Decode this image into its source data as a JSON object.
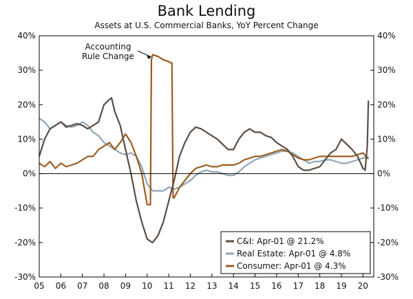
{
  "header": {
    "title": "Bank Lending",
    "subtitle": "Assets at U.S. Commercial Banks, YoY Percent Change"
  },
  "chart_data": {
    "type": "line",
    "title": "Bank Lending",
    "subtitle": "Assets at U.S. Commercial Banks, YoY Percent Change",
    "xlabel": "",
    "ylabel": "",
    "xlim": [
      2005,
      2020.5
    ],
    "ylim": [
      -30,
      40
    ],
    "x_ticks": [
      "05",
      "06",
      "07",
      "08",
      "09",
      "10",
      "11",
      "12",
      "13",
      "14",
      "15",
      "16",
      "17",
      "18",
      "19",
      "20"
    ],
    "y_ticks_left": [
      "40%",
      "30%",
      "20%",
      "10%",
      "0%",
      "-10%",
      "-20%",
      "-30%"
    ],
    "y_ticks_right": [
      "40%",
      "30%",
      "20%",
      "10%",
      "0%",
      "-10%",
      "-20%",
      "-30%"
    ],
    "grid": false,
    "zero_line": true,
    "annotation": {
      "text": [
        "Accounting",
        "Rule Change"
      ],
      "x": 2010.2,
      "y": 34
    },
    "legend": {
      "placement": "bottom-right"
    },
    "series": [
      {
        "name": "C&I: Apr-01 @ 21.2%",
        "color": "#5a4d44",
        "points": [
          [
            2005.0,
            5
          ],
          [
            2005.25,
            10
          ],
          [
            2005.5,
            13
          ],
          [
            2005.75,
            14
          ],
          [
            2006.0,
            15
          ],
          [
            2006.25,
            13.5
          ],
          [
            2006.5,
            14
          ],
          [
            2006.75,
            14.5
          ],
          [
            2007.0,
            14
          ],
          [
            2007.25,
            13
          ],
          [
            2007.5,
            14
          ],
          [
            2007.75,
            15
          ],
          [
            2008.0,
            20
          ],
          [
            2008.25,
            21.5
          ],
          [
            2008.35,
            22
          ],
          [
            2008.5,
            18
          ],
          [
            2008.75,
            14
          ],
          [
            2009.0,
            7
          ],
          [
            2009.25,
            0
          ],
          [
            2009.5,
            -8
          ],
          [
            2009.75,
            -14
          ],
          [
            2010.0,
            -19
          ],
          [
            2010.25,
            -20
          ],
          [
            2010.5,
            -18
          ],
          [
            2010.75,
            -14
          ],
          [
            2011.0,
            -8
          ],
          [
            2011.25,
            -2
          ],
          [
            2011.5,
            5
          ],
          [
            2011.75,
            9
          ],
          [
            2012.0,
            12
          ],
          [
            2012.25,
            13.5
          ],
          [
            2012.5,
            13
          ],
          [
            2012.75,
            12
          ],
          [
            2013.0,
            11
          ],
          [
            2013.25,
            10
          ],
          [
            2013.5,
            8.5
          ],
          [
            2013.75,
            7
          ],
          [
            2014.0,
            7
          ],
          [
            2014.25,
            10
          ],
          [
            2014.5,
            12
          ],
          [
            2014.75,
            13
          ],
          [
            2015.0,
            12
          ],
          [
            2015.25,
            12
          ],
          [
            2015.5,
            11
          ],
          [
            2015.75,
            10.5
          ],
          [
            2016.0,
            9
          ],
          [
            2016.25,
            8
          ],
          [
            2016.5,
            7
          ],
          [
            2016.75,
            5
          ],
          [
            2017.0,
            2
          ],
          [
            2017.25,
            1
          ],
          [
            2017.5,
            1
          ],
          [
            2017.75,
            1.5
          ],
          [
            2018.0,
            2
          ],
          [
            2018.25,
            4
          ],
          [
            2018.5,
            6
          ],
          [
            2018.75,
            7
          ],
          [
            2019.0,
            10
          ],
          [
            2019.25,
            8.5
          ],
          [
            2019.5,
            7
          ],
          [
            2019.75,
            5
          ],
          [
            2020.0,
            1.5
          ],
          [
            2020.1,
            1
          ],
          [
            2020.2,
            8
          ],
          [
            2020.25,
            21.2
          ]
        ]
      },
      {
        "name": "Real Estate: Apr-01 @ 4.8%",
        "color": "#8ca6b8",
        "points": [
          [
            2005.0,
            16
          ],
          [
            2005.25,
            15
          ],
          [
            2005.5,
            13
          ],
          [
            2005.75,
            14
          ],
          [
            2006.0,
            15
          ],
          [
            2006.25,
            14
          ],
          [
            2006.5,
            13.5
          ],
          [
            2006.75,
            14
          ],
          [
            2007.0,
            15
          ],
          [
            2007.25,
            14
          ],
          [
            2007.5,
            12
          ],
          [
            2007.75,
            11
          ],
          [
            2008.0,
            9
          ],
          [
            2008.25,
            8
          ],
          [
            2008.5,
            7
          ],
          [
            2008.75,
            6
          ],
          [
            2009.0,
            5.5
          ],
          [
            2009.25,
            6
          ],
          [
            2009.5,
            5
          ],
          [
            2009.75,
            2
          ],
          [
            2010.0,
            -3
          ],
          [
            2010.25,
            -5
          ],
          [
            2010.5,
            -5
          ],
          [
            2010.75,
            -5
          ],
          [
            2011.0,
            -4
          ],
          [
            2011.25,
            -4.5
          ],
          [
            2011.5,
            -4
          ],
          [
            2011.75,
            -3
          ],
          [
            2012.0,
            -2
          ],
          [
            2012.25,
            -0.5
          ],
          [
            2012.5,
            0.5
          ],
          [
            2012.75,
            1
          ],
          [
            2013.0,
            0.5
          ],
          [
            2013.25,
            0.5
          ],
          [
            2013.5,
            0
          ],
          [
            2013.75,
            -0.5
          ],
          [
            2014.0,
            -0.5
          ],
          [
            2014.25,
            0.5
          ],
          [
            2014.5,
            2
          ],
          [
            2014.75,
            3
          ],
          [
            2015.0,
            4
          ],
          [
            2015.25,
            4.5
          ],
          [
            2015.5,
            5
          ],
          [
            2015.75,
            5.5
          ],
          [
            2016.0,
            6
          ],
          [
            2016.25,
            6.5
          ],
          [
            2016.5,
            6.5
          ],
          [
            2016.75,
            6
          ],
          [
            2017.0,
            5
          ],
          [
            2017.25,
            4
          ],
          [
            2017.5,
            3
          ],
          [
            2017.75,
            3.5
          ],
          [
            2018.0,
            3.5
          ],
          [
            2018.25,
            4
          ],
          [
            2018.5,
            4
          ],
          [
            2018.75,
            3.5
          ],
          [
            2019.0,
            3
          ],
          [
            2019.25,
            3
          ],
          [
            2019.5,
            3.5
          ],
          [
            2019.75,
            4
          ],
          [
            2020.0,
            4.5
          ],
          [
            2020.25,
            4.8
          ]
        ]
      },
      {
        "name": "Consumer: Apr-01 @ 4.3%",
        "color": "#9b5a1d",
        "points": [
          [
            2005.0,
            3
          ],
          [
            2005.25,
            2
          ],
          [
            2005.5,
            3.5
          ],
          [
            2005.75,
            1.5
          ],
          [
            2006.0,
            3
          ],
          [
            2006.25,
            2
          ],
          [
            2006.5,
            2.5
          ],
          [
            2006.75,
            3
          ],
          [
            2007.0,
            4
          ],
          [
            2007.25,
            5
          ],
          [
            2007.5,
            5
          ],
          [
            2007.75,
            7
          ],
          [
            2008.0,
            8
          ],
          [
            2008.25,
            9
          ],
          [
            2008.5,
            7
          ],
          [
            2008.75,
            9
          ],
          [
            2009.0,
            11.5
          ],
          [
            2009.25,
            9
          ],
          [
            2009.5,
            5
          ],
          [
            2009.75,
            0
          ],
          [
            2010.0,
            -9
          ],
          [
            2010.15,
            -9
          ],
          [
            2010.2,
            33
          ],
          [
            2010.25,
            34.5
          ],
          [
            2010.5,
            34
          ],
          [
            2010.75,
            33
          ],
          [
            2011.0,
            32.5
          ],
          [
            2011.15,
            32
          ],
          [
            2011.2,
            -7
          ],
          [
            2011.25,
            -7
          ],
          [
            2011.5,
            -4
          ],
          [
            2011.75,
            -2
          ],
          [
            2012.0,
            0
          ],
          [
            2012.25,
            1.5
          ],
          [
            2012.5,
            2
          ],
          [
            2012.75,
            2.5
          ],
          [
            2013.0,
            2
          ],
          [
            2013.25,
            2
          ],
          [
            2013.5,
            2.5
          ],
          [
            2013.75,
            2.5
          ],
          [
            2014.0,
            2.5
          ],
          [
            2014.25,
            3
          ],
          [
            2014.5,
            4
          ],
          [
            2014.75,
            4.5
          ],
          [
            2015.0,
            5
          ],
          [
            2015.25,
            5
          ],
          [
            2015.5,
            5.5
          ],
          [
            2015.75,
            6
          ],
          [
            2016.0,
            6.5
          ],
          [
            2016.25,
            7
          ],
          [
            2016.5,
            6.5
          ],
          [
            2016.75,
            5.5
          ],
          [
            2017.0,
            4.5
          ],
          [
            2017.25,
            4
          ],
          [
            2017.5,
            4
          ],
          [
            2017.75,
            4.5
          ],
          [
            2018.0,
            5
          ],
          [
            2018.25,
            5
          ],
          [
            2018.5,
            5
          ],
          [
            2018.75,
            5
          ],
          [
            2019.0,
            5
          ],
          [
            2019.25,
            5
          ],
          [
            2019.5,
            5
          ],
          [
            2019.75,
            5.5
          ],
          [
            2020.0,
            6
          ],
          [
            2020.25,
            4.3
          ]
        ]
      }
    ]
  }
}
